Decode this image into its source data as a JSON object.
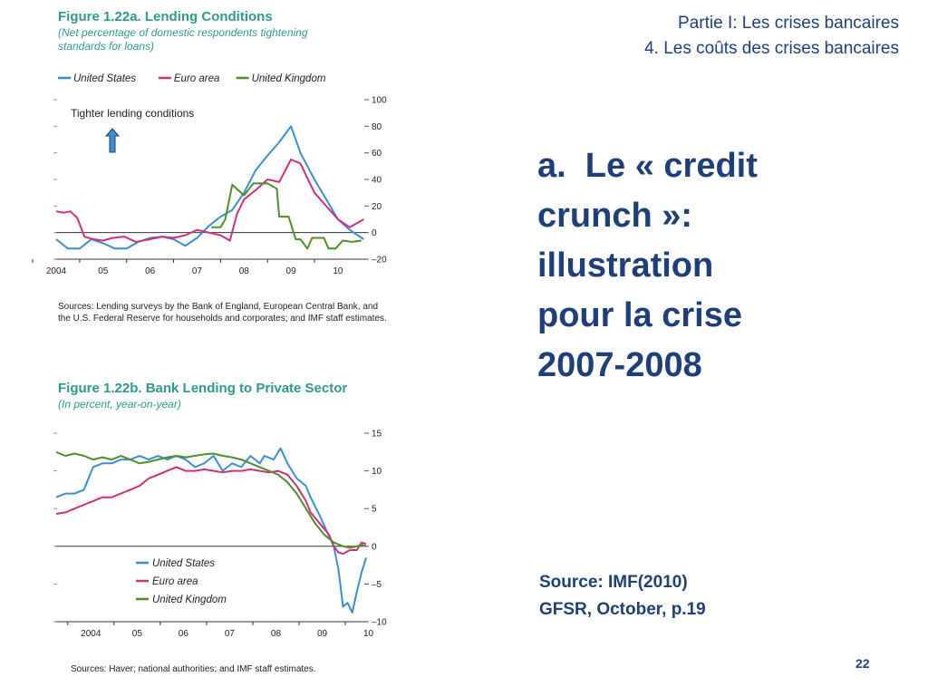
{
  "header": {
    "line1": "Partie I: Les crises bancaires",
    "line2": "4. Les coûts des crises bancaires"
  },
  "main": {
    "title_lines": [
      "a.  Le « credit",
      "crunch »:",
      "illustration",
      "pour la crise",
      "2007-2008"
    ],
    "source_lines": [
      "Source: IMF(2010)",
      "GFSR, October, p.19"
    ]
  },
  "page_number": "22",
  "colors": {
    "navy": "#1f3f7a",
    "teal": "#2e9a8a",
    "us": "#3a8fd0",
    "euro": "#d0307a",
    "uk": "#4e8f2c"
  },
  "chart_data": [
    {
      "type": "line",
      "title": "Figure 1.22a. Lending Conditions",
      "subtitle": "(Net percentage of domestic respondents tightening standards for loans)",
      "annotation": "Tighter lending conditions",
      "sources": "Sources: Lending surveys by the Bank of England, European Central Bank, and the U.S. Federal Reserve for households and corporates; and IMF staff estimates.",
      "x_ticks": [
        "2004",
        "05",
        "06",
        "07",
        "08",
        "09",
        "10"
      ],
      "y_ticks": [
        "100",
        "80",
        "60",
        "40",
        "20",
        "0",
        "–20"
      ],
      "ylim": [
        -20,
        100
      ],
      "xlim": [
        2004.0,
        2010.6
      ],
      "legend_position": "top",
      "series": [
        {
          "name": "United States",
          "color": "#3a8fd0",
          "points": [
            [
              2004.0,
              -5
            ],
            [
              2004.25,
              -12
            ],
            [
              2004.5,
              -12
            ],
            [
              2004.75,
              -5
            ],
            [
              2005.0,
              -8
            ],
            [
              2005.25,
              -12
            ],
            [
              2005.5,
              -12
            ],
            [
              2005.75,
              -7
            ],
            [
              2006.0,
              -4
            ],
            [
              2006.25,
              -3
            ],
            [
              2006.5,
              -5
            ],
            [
              2006.75,
              -10
            ],
            [
              2007.0,
              -4
            ],
            [
              2007.25,
              5
            ],
            [
              2007.5,
              12
            ],
            [
              2007.75,
              17
            ],
            [
              2008.0,
              30
            ],
            [
              2008.25,
              47
            ],
            [
              2008.5,
              58
            ],
            [
              2008.75,
              68
            ],
            [
              2009.0,
              80
            ],
            [
              2009.2,
              60
            ],
            [
              2009.5,
              40
            ],
            [
              2009.75,
              25
            ],
            [
              2010.0,
              10
            ],
            [
              2010.25,
              2
            ],
            [
              2010.55,
              -5
            ]
          ]
        },
        {
          "name": "Euro area",
          "color": "#d0307a",
          "points": [
            [
              2004.0,
              16
            ],
            [
              2004.15,
              15
            ],
            [
              2004.3,
              16
            ],
            [
              2004.45,
              11
            ],
            [
              2004.6,
              -3
            ],
            [
              2004.8,
              -5
            ],
            [
              2005.0,
              -6
            ],
            [
              2005.2,
              -4
            ],
            [
              2005.45,
              -3
            ],
            [
              2005.7,
              -7
            ],
            [
              2006.0,
              -5
            ],
            [
              2006.25,
              -3
            ],
            [
              2006.5,
              -4
            ],
            [
              2006.75,
              -2
            ],
            [
              2007.0,
              2
            ],
            [
              2007.25,
              0
            ],
            [
              2007.5,
              -2
            ],
            [
              2007.7,
              -6
            ],
            [
              2007.85,
              14
            ],
            [
              2008.0,
              25
            ],
            [
              2008.25,
              32
            ],
            [
              2008.5,
              40
            ],
            [
              2008.75,
              38
            ],
            [
              2009.0,
              55
            ],
            [
              2009.2,
              52
            ],
            [
              2009.5,
              30
            ],
            [
              2009.75,
              20
            ],
            [
              2010.0,
              10
            ],
            [
              2010.25,
              4
            ],
            [
              2010.55,
              10
            ]
          ]
        },
        {
          "name": "United Kingdom",
          "color": "#4e8f2c",
          "points": [
            [
              2007.3,
              4
            ],
            [
              2007.5,
              4
            ],
            [
              2007.6,
              10
            ],
            [
              2007.75,
              36
            ],
            [
              2008.0,
              28
            ],
            [
              2008.2,
              37
            ],
            [
              2008.5,
              37
            ],
            [
              2008.7,
              33
            ],
            [
              2008.75,
              12
            ],
            [
              2008.95,
              12
            ],
            [
              2009.1,
              -5
            ],
            [
              2009.2,
              -5
            ],
            [
              2009.35,
              -12
            ],
            [
              2009.45,
              -4
            ],
            [
              2009.7,
              -4
            ],
            [
              2009.8,
              -12
            ],
            [
              2009.95,
              -12
            ],
            [
              2010.1,
              -6
            ],
            [
              2010.3,
              -7
            ],
            [
              2010.5,
              -6
            ]
          ]
        }
      ]
    },
    {
      "type": "line",
      "title": "Figure 1.22b. Bank Lending to Private Sector",
      "subtitle": "(In percent, year-on-year)",
      "sources": "Sources: Haver; national authorities; and IMF staff estimates.",
      "x_ticks": [
        "2004",
        "05",
        "06",
        "07",
        "08",
        "09",
        "10"
      ],
      "y_ticks": [
        "15",
        "10",
        "5",
        "0",
        "–5",
        "–10"
      ],
      "ylim": [
        -10,
        15
      ],
      "xlim": [
        2003.5,
        2010.2
      ],
      "legend_position": "bottom-left",
      "series": [
        {
          "name": "United States",
          "color": "#3a8fd0",
          "points": [
            [
              2003.5,
              6.5
            ],
            [
              2003.7,
              7
            ],
            [
              2003.9,
              7
            ],
            [
              2004.1,
              7.5
            ],
            [
              2004.3,
              10.5
            ],
            [
              2004.5,
              11
            ],
            [
              2004.7,
              11
            ],
            [
              2004.9,
              11.5
            ],
            [
              2005.1,
              11.5
            ],
            [
              2005.3,
              12
            ],
            [
              2005.5,
              11.5
            ],
            [
              2005.7,
              12
            ],
            [
              2005.9,
              11.5
            ],
            [
              2006.1,
              12
            ],
            [
              2006.3,
              11.5
            ],
            [
              2006.5,
              10.5
            ],
            [
              2006.7,
              11
            ],
            [
              2006.9,
              12
            ],
            [
              2007.1,
              10
            ],
            [
              2007.3,
              11
            ],
            [
              2007.5,
              10.5
            ],
            [
              2007.7,
              12
            ],
            [
              2007.9,
              11
            ],
            [
              2008.0,
              12
            ],
            [
              2008.2,
              11.5
            ],
            [
              2008.35,
              13
            ],
            [
              2008.5,
              11
            ],
            [
              2008.7,
              9
            ],
            [
              2008.9,
              8
            ],
            [
              2009.0,
              6.5
            ],
            [
              2009.2,
              4
            ],
            [
              2009.35,
              2
            ],
            [
              2009.5,
              0
            ],
            [
              2009.6,
              -3
            ],
            [
              2009.7,
              -8
            ],
            [
              2009.8,
              -7.5
            ],
            [
              2009.9,
              -8.8
            ],
            [
              2010.0,
              -6
            ],
            [
              2010.1,
              -3.5
            ],
            [
              2010.2,
              -1.5
            ]
          ]
        },
        {
          "name": "Euro area",
          "color": "#d0307a",
          "points": [
            [
              2003.5,
              4.3
            ],
            [
              2003.7,
              4.5
            ],
            [
              2003.9,
              5
            ],
            [
              2004.1,
              5.5
            ],
            [
              2004.3,
              6
            ],
            [
              2004.5,
              6.5
            ],
            [
              2004.7,
              6.5
            ],
            [
              2004.9,
              7
            ],
            [
              2005.1,
              7.5
            ],
            [
              2005.3,
              8
            ],
            [
              2005.5,
              9
            ],
            [
              2005.7,
              9.5
            ],
            [
              2005.9,
              10
            ],
            [
              2006.1,
              10.5
            ],
            [
              2006.3,
              10
            ],
            [
              2006.5,
              10
            ],
            [
              2006.7,
              10.2
            ],
            [
              2006.9,
              10
            ],
            [
              2007.1,
              9.8
            ],
            [
              2007.3,
              10
            ],
            [
              2007.5,
              10
            ],
            [
              2007.7,
              10.2
            ],
            [
              2007.9,
              10
            ],
            [
              2008.1,
              9.8
            ],
            [
              2008.3,
              10
            ],
            [
              2008.5,
              9.5
            ],
            [
              2008.7,
              8
            ],
            [
              2008.9,
              6
            ],
            [
              2009.0,
              4.5
            ],
            [
              2009.2,
              3
            ],
            [
              2009.4,
              1.5
            ],
            [
              2009.5,
              0
            ],
            [
              2009.6,
              -0.8
            ],
            [
              2009.7,
              -1
            ],
            [
              2009.85,
              -0.5
            ],
            [
              2010.0,
              -0.5
            ],
            [
              2010.1,
              0.5
            ],
            [
              2010.2,
              0.3
            ]
          ]
        },
        {
          "name": "United Kingdom",
          "color": "#4e8f2c",
          "points": [
            [
              2003.5,
              12.5
            ],
            [
              2003.7,
              12
            ],
            [
              2003.9,
              12.3
            ],
            [
              2004.1,
              12
            ],
            [
              2004.3,
              11.5
            ],
            [
              2004.5,
              11.8
            ],
            [
              2004.7,
              11.5
            ],
            [
              2004.9,
              12
            ],
            [
              2005.1,
              11.5
            ],
            [
              2005.3,
              11
            ],
            [
              2005.5,
              11.2
            ],
            [
              2005.7,
              11.5
            ],
            [
              2005.9,
              11.8
            ],
            [
              2006.1,
              12
            ],
            [
              2006.3,
              11.8
            ],
            [
              2006.5,
              12
            ],
            [
              2006.7,
              12.2
            ],
            [
              2006.9,
              12.3
            ],
            [
              2007.1,
              12
            ],
            [
              2007.3,
              11.8
            ],
            [
              2007.5,
              11.5
            ],
            [
              2007.7,
              11
            ],
            [
              2007.9,
              10.5
            ],
            [
              2008.1,
              10
            ],
            [
              2008.3,
              9.5
            ],
            [
              2008.5,
              8.5
            ],
            [
              2008.7,
              7
            ],
            [
              2008.9,
              5
            ],
            [
              2009.1,
              3
            ],
            [
              2009.3,
              1.5
            ],
            [
              2009.5,
              0.5
            ],
            [
              2009.7,
              0
            ],
            [
              2009.85,
              -0.2
            ],
            [
              2010.0,
              0
            ],
            [
              2010.1,
              0.2
            ],
            [
              2010.2,
              0
            ]
          ]
        }
      ]
    }
  ]
}
